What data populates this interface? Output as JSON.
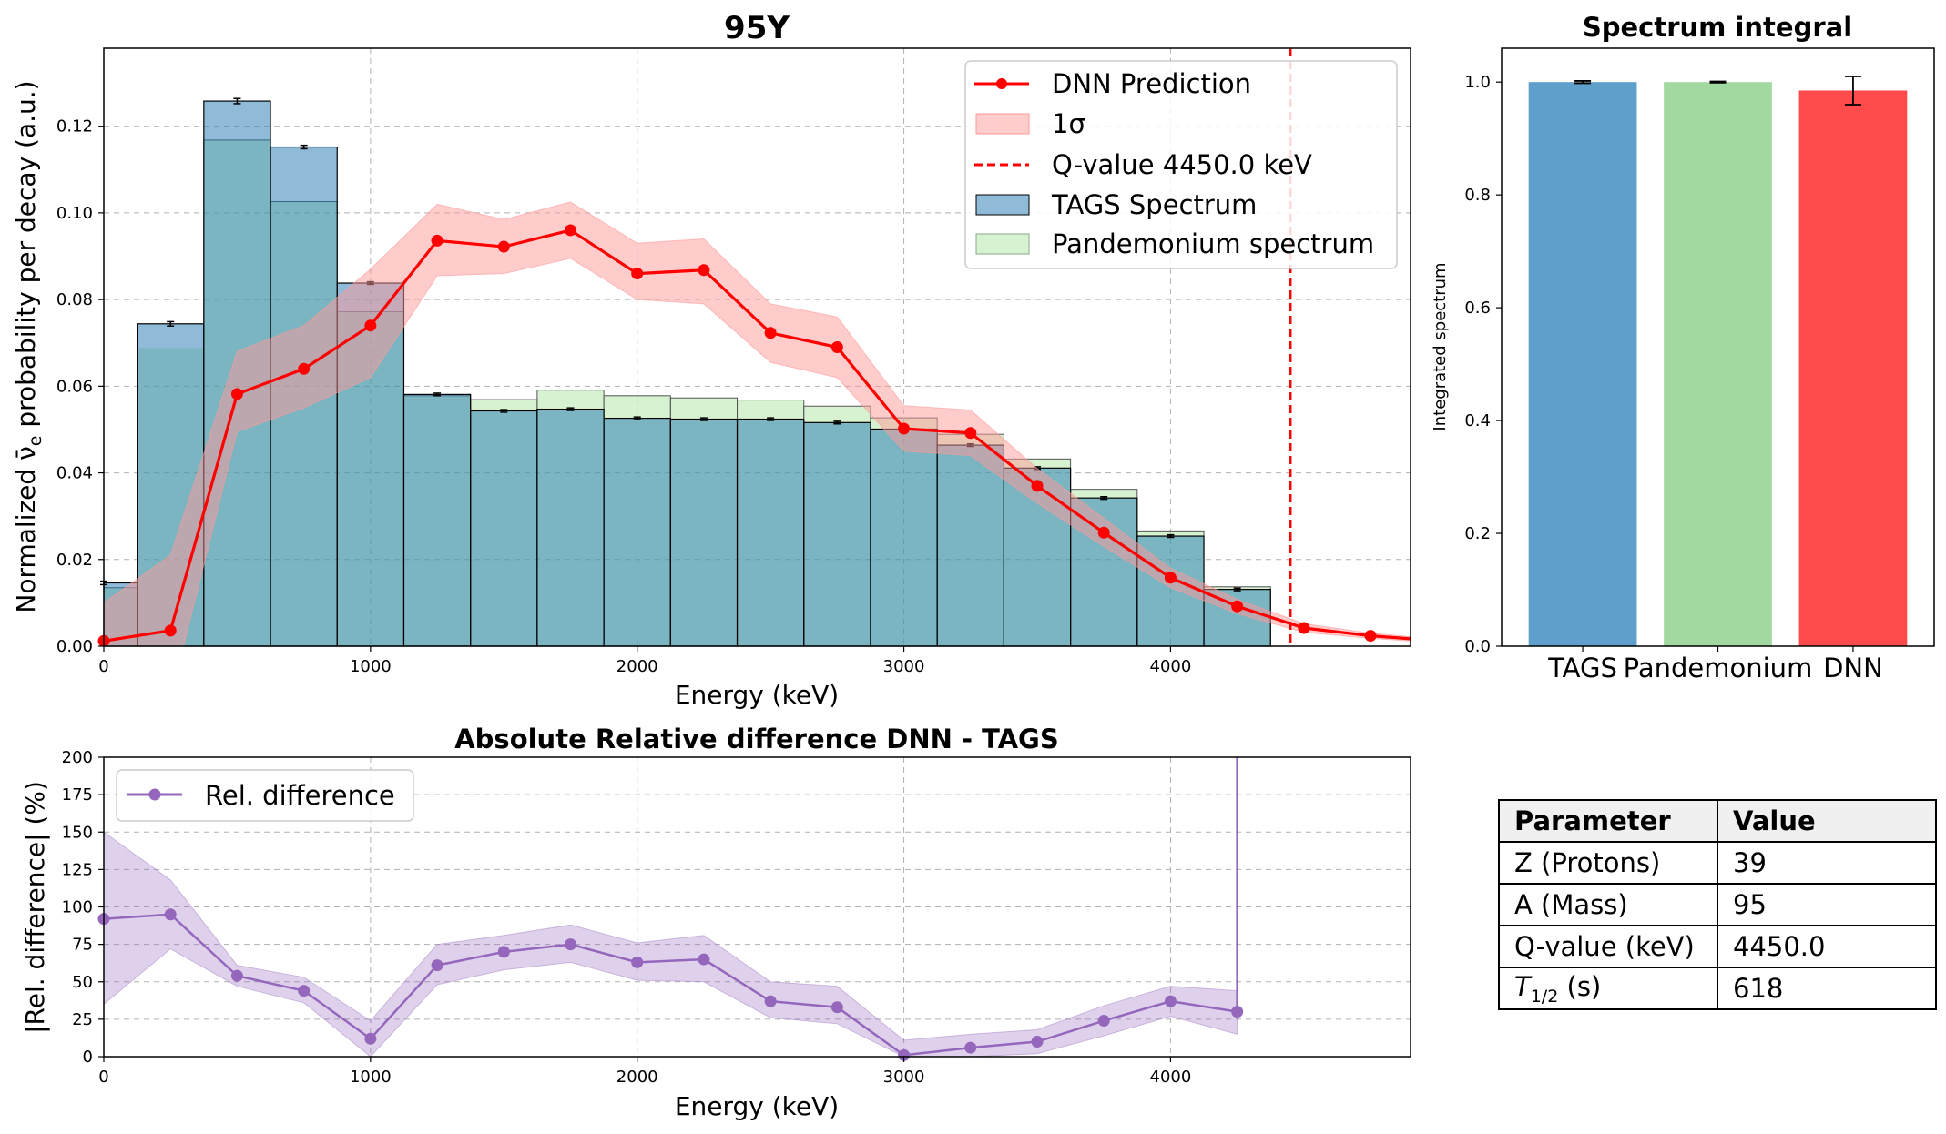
{
  "chart_data": [
    {
      "type": "bar",
      "title": "95Y",
      "xlabel": "Energy (keV)",
      "ylabel_prefix": "Normalized ",
      "ylabel_nu": "ν̄",
      "ylabel_sub": "e",
      "ylabel_suffix": " probability per decay (a.u.)",
      "xlim": [
        0,
        4900
      ],
      "ylim": [
        0,
        0.138
      ],
      "xticks": [
        0,
        1000,
        2000,
        3000,
        4000
      ],
      "yticks": [
        0.0,
        0.02,
        0.04,
        0.06,
        0.08,
        0.1,
        0.12
      ],
      "grid": true,
      "legend_position": "top-right",
      "legend": {
        "dnn": "DNN Prediction",
        "sigma": "1σ",
        "qvalue": "Q-value 4450.0 keV",
        "tags": "TAGS Spectrum",
        "pandemonium": "Pandemonium spectrum"
      },
      "bin_width": 250,
      "bin_centers": [
        0,
        250,
        500,
        750,
        1000,
        1250,
        1500,
        1750,
        2000,
        2250,
        2500,
        2750,
        3000,
        3250,
        3500,
        3750,
        4000,
        4250
      ],
      "tags_values": [
        0.0146,
        0.0744,
        0.1258,
        0.1152,
        0.0838,
        0.0581,
        0.0543,
        0.0547,
        0.0526,
        0.0524,
        0.0524,
        0.0516,
        0.0501,
        0.0464,
        0.0411,
        0.0342,
        0.0254,
        0.0131
      ],
      "tags_errors": [
        0.0004,
        0.0005,
        0.0006,
        0.0004,
        0.0003,
        0.0003,
        0.0003,
        0.0003,
        0.0003,
        0.0003,
        0.0003,
        0.0003,
        0.0003,
        0.0003,
        0.0003,
        0.0003,
        0.0003,
        0.0003
      ],
      "pandemonium_values": [
        0.0135,
        0.0686,
        0.1168,
        0.1026,
        0.0772,
        0.0578,
        0.0569,
        0.0591,
        0.0578,
        0.0573,
        0.0568,
        0.0554,
        0.0527,
        0.0489,
        0.0432,
        0.0362,
        0.0266,
        0.0137
      ],
      "dnn_x": [
        0,
        250,
        500,
        750,
        1000,
        1250,
        1500,
        1750,
        2000,
        2250,
        2500,
        2750,
        3000,
        3250,
        3500,
        3750,
        4000,
        4250,
        4500,
        4750,
        4900
      ],
      "dnn_y": [
        0.0012,
        0.0036,
        0.0582,
        0.064,
        0.074,
        0.0936,
        0.0922,
        0.096,
        0.086,
        0.0868,
        0.0723,
        0.069,
        0.0502,
        0.0492,
        0.037,
        0.0262,
        0.0158,
        0.0092,
        0.0042,
        0.0024,
        0.0017
      ],
      "dnn_sigma_low": [
        -0.005,
        -0.012,
        0.0495,
        0.055,
        0.062,
        0.0855,
        0.086,
        0.0895,
        0.08,
        0.079,
        0.0655,
        0.062,
        0.045,
        0.044,
        0.033,
        0.023,
        0.0135,
        0.0075,
        0.0032,
        0.0018,
        0.0012
      ],
      "dnn_sigma_high": [
        0.01,
        0.021,
        0.068,
        0.074,
        0.087,
        0.102,
        0.0985,
        0.1025,
        0.093,
        0.094,
        0.079,
        0.076,
        0.0555,
        0.0545,
        0.041,
        0.0295,
        0.018,
        0.0108,
        0.0052,
        0.003,
        0.0022
      ],
      "qvalue": 4450.0,
      "colors": {
        "tags": "#1f77b4",
        "pandemonium": "#98df8a",
        "dnn": "#ff0000",
        "sigma": "#ff9999"
      }
    },
    {
      "type": "bar",
      "title": "Spectrum integral",
      "ylabel": "Integrated spectrum",
      "categories": [
        "TAGS",
        "Pandemonium",
        "DNN"
      ],
      "values": [
        1.0,
        1.0,
        0.985
      ],
      "errors": [
        0.002,
        0.001,
        0.025
      ],
      "ylim": [
        0,
        1.06
      ],
      "yticks": [
        0.0,
        0.2,
        0.4,
        0.6,
        0.8,
        1.0
      ],
      "colors": [
        "#5f9fcc",
        "#a2d9a0",
        "#ff4b4b"
      ]
    },
    {
      "type": "line",
      "title": "Absolute Relative difference DNN - TAGS",
      "xlabel": "Energy (keV)",
      "ylabel": "|Rel. difference| (%)",
      "xlim": [
        0,
        4900
      ],
      "ylim": [
        0,
        200
      ],
      "xticks": [
        0,
        1000,
        2000,
        3000,
        4000
      ],
      "yticks": [
        0,
        25,
        50,
        75,
        100,
        125,
        150,
        175,
        200
      ],
      "grid": true,
      "legend_position": "top-left",
      "series": [
        {
          "name": "Rel. difference",
          "x": [
            0,
            250,
            500,
            750,
            1000,
            1250,
            1500,
            1750,
            2000,
            2250,
            2500,
            2750,
            3000,
            3250,
            3500,
            3750,
            4000,
            4250
          ],
          "y": [
            92,
            95,
            54,
            44,
            12,
            61,
            70,
            75,
            63,
            65,
            37,
            33,
            1,
            6,
            10,
            24,
            37,
            30
          ],
          "band_low": [
            35,
            72,
            47,
            36,
            0,
            48,
            58,
            63,
            51,
            50,
            26,
            22,
            0,
            0,
            2,
            14,
            27,
            15
          ],
          "band_high": [
            150,
            118,
            61,
            53,
            24,
            75,
            81,
            88,
            76,
            81,
            50,
            47,
            11,
            15,
            18,
            34,
            47,
            44
          ],
          "spike_x": 4250,
          "color": "#9467bd"
        }
      ]
    }
  ],
  "table": {
    "header": [
      "Parameter",
      "Value"
    ],
    "rows": [
      {
        "param": "Z (Protons)",
        "value": "39"
      },
      {
        "param": "A (Mass)",
        "value": "95"
      },
      {
        "param": "Q-value (keV)",
        "value": "4450.0"
      }
    ],
    "halflife": {
      "symbol": "T",
      "sub": "1/2",
      "unit": " (s)",
      "value": "618"
    }
  }
}
